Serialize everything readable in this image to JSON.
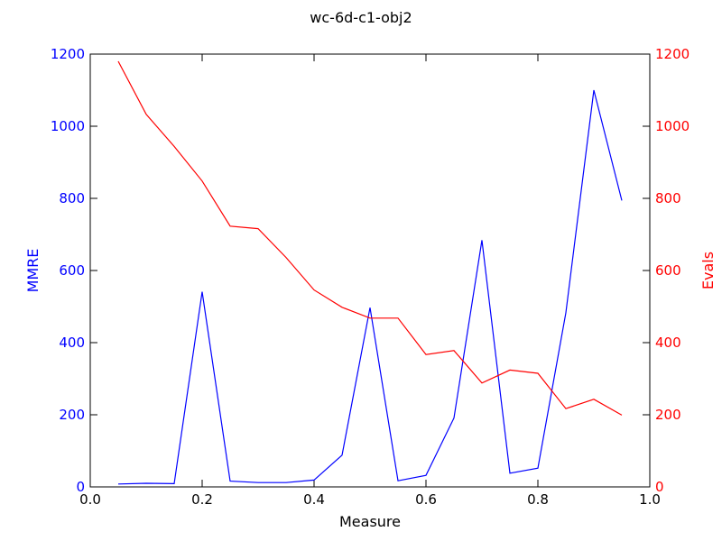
{
  "chart_data": {
    "type": "line",
    "title": "wc-6d-c1-obj2",
    "xlabel": "Measure",
    "xlim": [
      0.0,
      1.0
    ],
    "x_ticks": [
      "0.0",
      "0.2",
      "0.4",
      "0.6",
      "0.8",
      "1.0"
    ],
    "x_tick_values": [
      0.0,
      0.2,
      0.4,
      0.6,
      0.8,
      1.0
    ],
    "y_left": {
      "label": "MMRE",
      "color": "#0000ff",
      "lim": [
        0,
        1200
      ],
      "ticks": [
        "0",
        "200",
        "400",
        "600",
        "800",
        "1000",
        "1200"
      ],
      "tick_values": [
        0,
        200,
        400,
        600,
        800,
        1000,
        1200
      ]
    },
    "y_right": {
      "label": "Evals",
      "color": "#ff0000",
      "lim": [
        0,
        1200
      ],
      "ticks": [
        "0",
        "200",
        "400",
        "600",
        "800",
        "1000",
        "1200"
      ],
      "tick_values": [
        0,
        200,
        400,
        600,
        800,
        1000,
        1200
      ]
    },
    "x": [
      0.05,
      0.1,
      0.15,
      0.2,
      0.25,
      0.3,
      0.35,
      0.4,
      0.45,
      0.5,
      0.55,
      0.6,
      0.65,
      0.7,
      0.75,
      0.8,
      0.85,
      0.9,
      0.95
    ],
    "series": [
      {
        "axis": "left",
        "color": "#0000ff",
        "values": [
          8,
          10,
          9,
          541,
          16,
          12,
          12,
          19,
          88,
          497,
          17,
          32,
          191,
          684,
          38,
          52,
          483,
          1100,
          794
        ]
      },
      {
        "axis": "right",
        "color": "#ff0000",
        "values": [
          1180,
          1033,
          944,
          848,
          723,
          716,
          636,
          546,
          498,
          468,
          468,
          367,
          378,
          288,
          324,
          315,
          217,
          243,
          199
        ]
      }
    ],
    "grid": false,
    "legend": "none"
  }
}
